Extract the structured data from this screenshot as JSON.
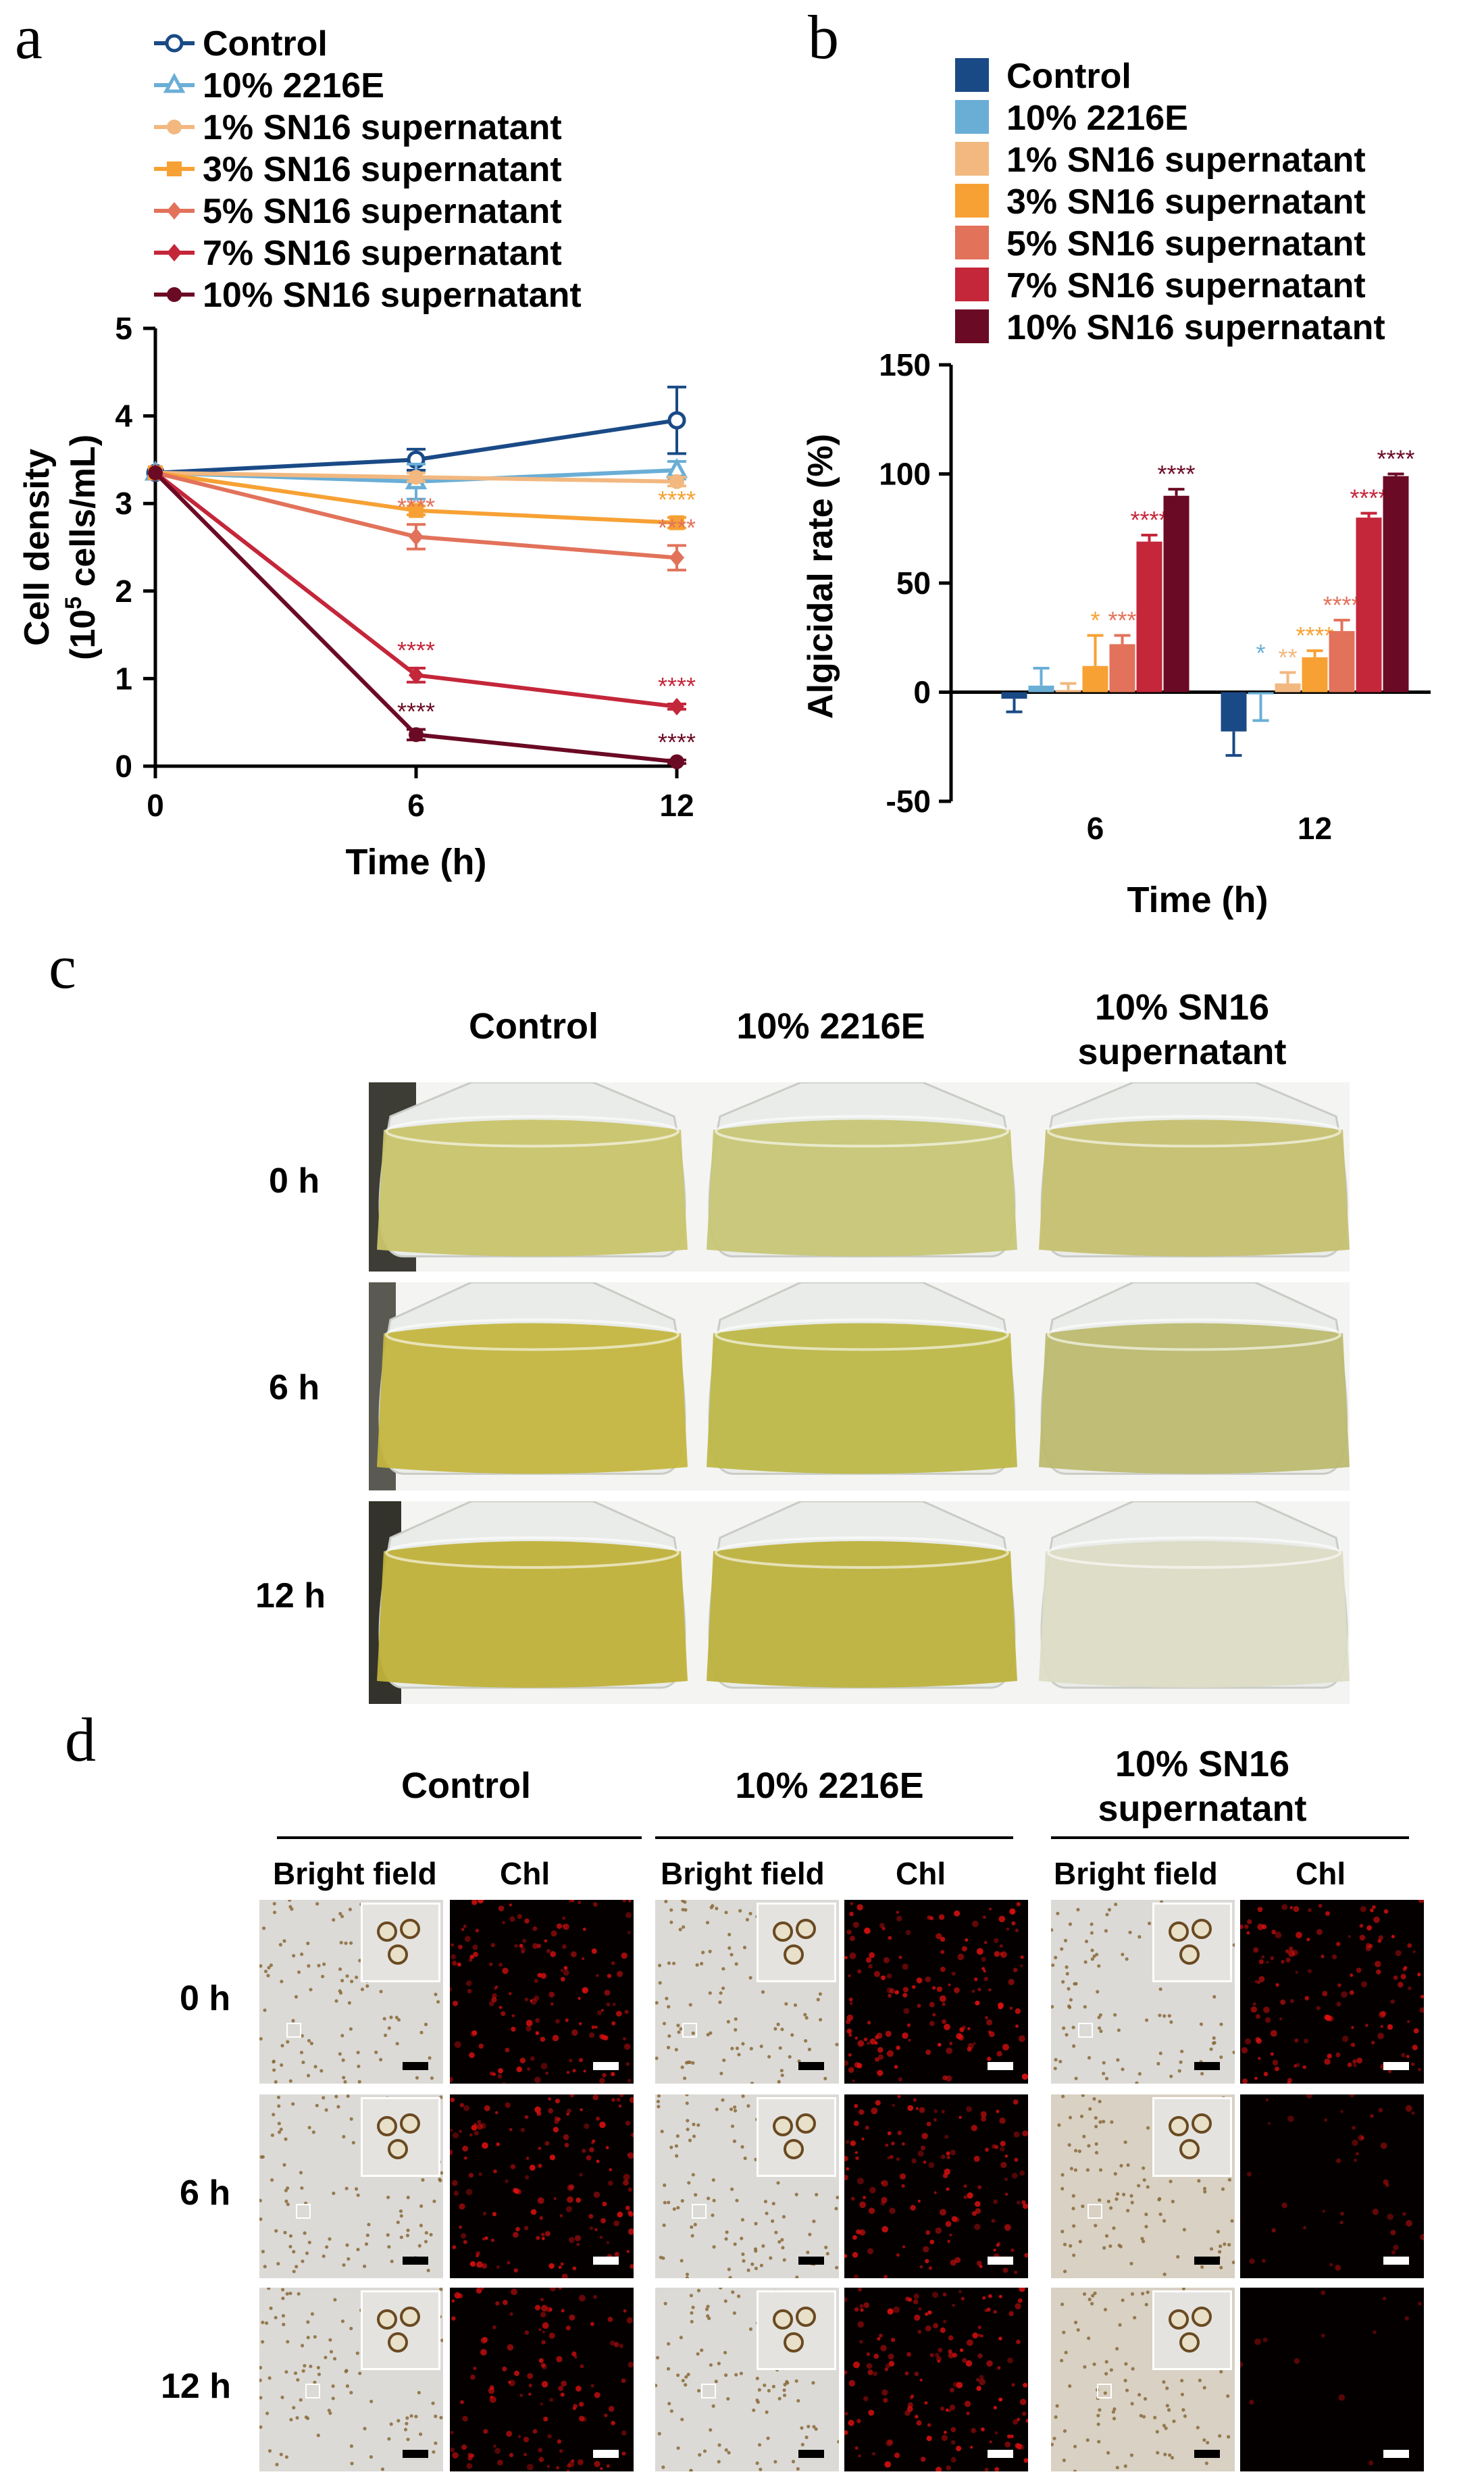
{
  "panels": {
    "a": {
      "letter": "a"
    },
    "b": {
      "letter": "b"
    },
    "c": {
      "letter": "c"
    },
    "d": {
      "letter": "d"
    }
  },
  "colors": {
    "control": "#1a4a86",
    "e2216": "#6aaed6",
    "sn1": "#f2b880",
    "sn3": "#f7a134",
    "sn5": "#e2725a",
    "sn7": "#c4263a",
    "sn10": "#6b0a24"
  },
  "chart_data": [
    {
      "type": "line",
      "panel": "a",
      "xlabel": "Time (h)",
      "ylabel_line1": "Cell density",
      "ylabel_line2_pre": "(10",
      "ylabel_line2_sup": "5",
      "ylabel_line2_post": " cells/mL)",
      "x": [
        0,
        6,
        12
      ],
      "x_ticks": [
        "0",
        "6",
        "12"
      ],
      "y_ticks": [
        "0",
        "1",
        "2",
        "3",
        "4",
        "5"
      ],
      "ylim": [
        0,
        5
      ],
      "series": [
        {
          "name": "Control",
          "key": "control",
          "values": [
            3.35,
            3.5,
            3.95
          ],
          "errors": [
            0,
            0.12,
            0.38
          ],
          "marker": "circle-open",
          "sig": [
            "",
            "",
            ""
          ]
        },
        {
          "name": "10% 2216E",
          "key": "e2216",
          "values": [
            3.35,
            3.25,
            3.38
          ],
          "errors": [
            0,
            0.2,
            0.1
          ],
          "marker": "triangle-open",
          "sig": [
            "",
            "",
            ""
          ]
        },
        {
          "name": "1% SN16 supernatant",
          "key": "sn1",
          "values": [
            3.35,
            3.3,
            3.25
          ],
          "errors": [
            0,
            0.05,
            0.05
          ],
          "marker": "hexagon",
          "sig": [
            "",
            "",
            ""
          ]
        },
        {
          "name": "3% SN16 supernatant",
          "key": "sn3",
          "values": [
            3.35,
            2.92,
            2.78
          ],
          "errors": [
            0,
            0.05,
            0.06
          ],
          "marker": "square",
          "sig": [
            "",
            "",
            "****"
          ]
        },
        {
          "name": "5% SN16 supernatant",
          "key": "sn5",
          "values": [
            3.35,
            2.62,
            2.38
          ],
          "errors": [
            0,
            0.14,
            0.14
          ],
          "marker": "diamond",
          "sig": [
            "",
            "****",
            "****"
          ]
        },
        {
          "name": "7% SN16 supernatant",
          "key": "sn7",
          "values": [
            3.35,
            1.04,
            0.68
          ],
          "errors": [
            0,
            0.08,
            0.03
          ],
          "marker": "diamond",
          "sig": [
            "",
            "****",
            "****"
          ]
        },
        {
          "name": "10% SN16 supernatant",
          "key": "sn10",
          "values": [
            3.35,
            0.36,
            0.05
          ],
          "errors": [
            0,
            0.06,
            0.02
          ],
          "marker": "hexagon",
          "sig": [
            "",
            "****",
            "****"
          ]
        }
      ]
    },
    {
      "type": "bar",
      "panel": "b",
      "xlabel": "Time (h)",
      "ylabel": "Algicidal rate (%)",
      "categories": [
        "6",
        "12"
      ],
      "y_ticks": [
        "-50",
        "0",
        "50",
        "100",
        "150"
      ],
      "ylim": [
        -50,
        150
      ],
      "series": [
        {
          "name": "Control",
          "key": "control",
          "values": [
            -3,
            -18
          ],
          "errors": [
            6,
            11
          ],
          "sig": [
            "",
            ""
          ]
        },
        {
          "name": "10% 2216E",
          "key": "e2216",
          "values": [
            3,
            -1
          ],
          "errors": [
            8,
            12
          ],
          "sig": [
            "",
            "*"
          ]
        },
        {
          "name": "1% SN16 supernatant",
          "key": "sn1",
          "values": [
            1,
            4
          ],
          "errors": [
            3,
            5
          ],
          "sig": [
            "",
            "**"
          ]
        },
        {
          "name": "3% SN16 supernatant",
          "key": "sn3",
          "values": [
            12,
            16
          ],
          "errors": [
            14,
            3
          ],
          "sig": [
            "*",
            "****"
          ]
        },
        {
          "name": "5% SN16 supernatant",
          "key": "sn5",
          "values": [
            22,
            28
          ],
          "errors": [
            4,
            5
          ],
          "sig": [
            "***",
            "****"
          ]
        },
        {
          "name": "7% SN16 supernatant",
          "key": "sn7",
          "values": [
            69,
            80
          ],
          "errors": [
            3,
            2
          ],
          "sig": [
            "****",
            "****"
          ]
        },
        {
          "name": "10% SN16 supernatant",
          "key": "sn10",
          "values": [
            90,
            99
          ],
          "errors": [
            3,
            1
          ],
          "sig": [
            "****",
            "****"
          ]
        }
      ]
    }
  ],
  "photos": {
    "columns": [
      "Control",
      "10% 2216E",
      "10% SN16\nsupernatant"
    ],
    "rows": [
      "0 h",
      "6 h",
      "12 h"
    ],
    "liquid_colors": [
      [
        "#c9c46a",
        "#c7c676",
        "#c6c070"
      ],
      [
        "#c4b640",
        "#bdb848",
        "#bdbb70"
      ],
      [
        "#c0b13a",
        "#bdb23e",
        "#dcdcc6"
      ]
    ]
  },
  "micrographs": {
    "groups": [
      "Control",
      "10% 2216E",
      "10% SN16\nsupernatant"
    ],
    "subheaders": {
      "bright": "Bright field",
      "chl": "Chl"
    },
    "rows": [
      "0 h",
      "6 h",
      "12 h"
    ],
    "chl_intensity": [
      [
        0.9,
        0.95,
        0.85
      ],
      [
        0.9,
        0.85,
        0.25
      ],
      [
        0.75,
        0.95,
        0.08
      ]
    ]
  }
}
